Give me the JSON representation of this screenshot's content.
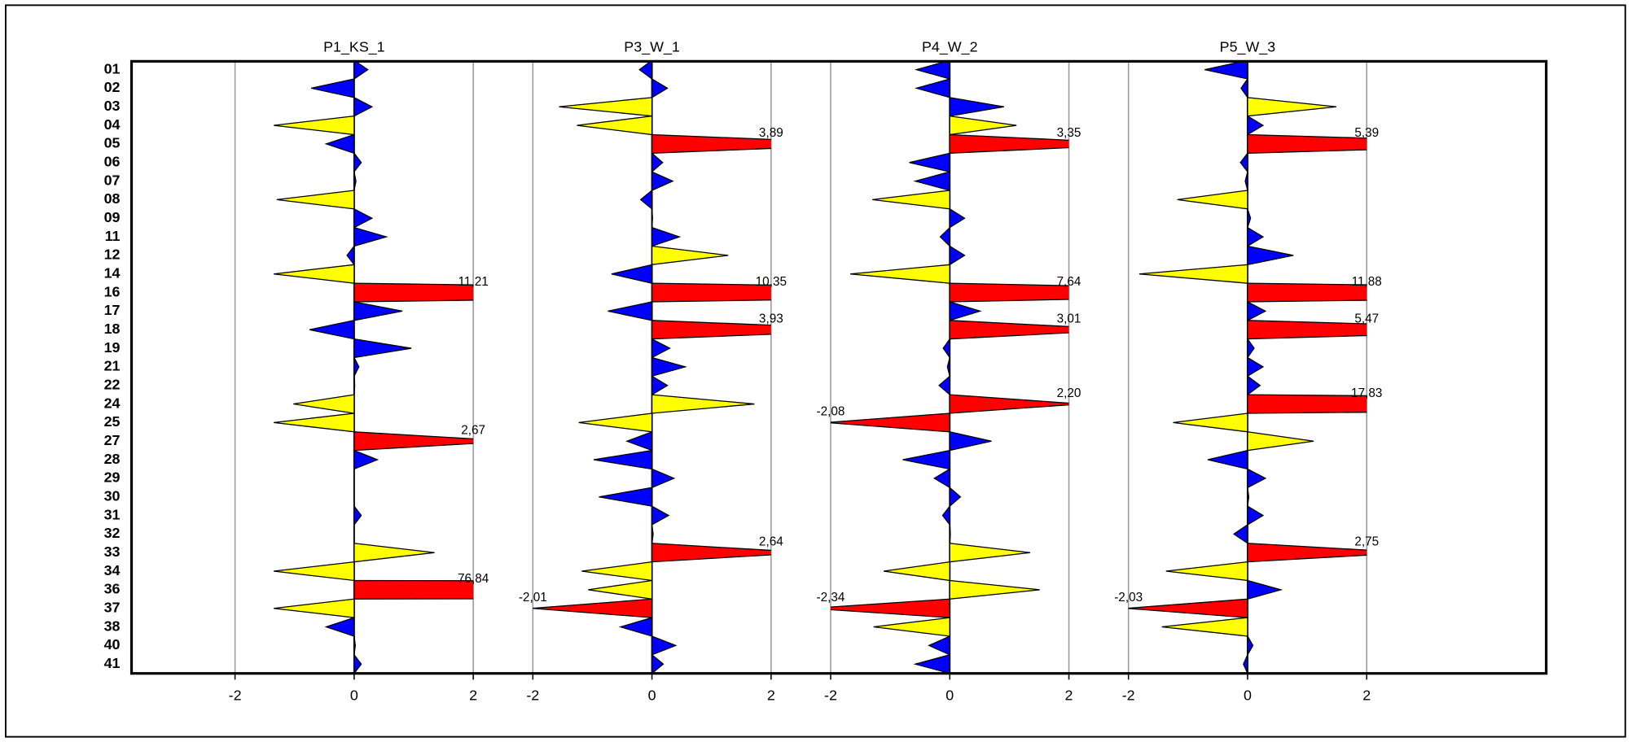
{
  "chart_data": {
    "type": "spike",
    "categories": [
      "01",
      "02",
      "03",
      "04",
      "05",
      "06",
      "07",
      "08",
      "09",
      "11",
      "12",
      "14",
      "16",
      "17",
      "18",
      "19",
      "21",
      "22",
      "24",
      "25",
      "27",
      "28",
      "29",
      "30",
      "31",
      "32",
      "33",
      "34",
      "36",
      "37",
      "38",
      "40",
      "41"
    ],
    "xlim": [
      -2.5,
      2.5
    ],
    "xticks": [
      -2,
      0,
      2
    ],
    "grid": true,
    "series": [
      {
        "name": "P1_KS_1",
        "values": [
          0.23,
          -0.72,
          0.3,
          -1.35,
          -0.47,
          0.12,
          0.03,
          -1.3,
          0.3,
          0.54,
          -0.12,
          -1.35,
          11.21,
          0.81,
          -0.75,
          0.96,
          0.08,
          0.01,
          -1.02,
          -1.35,
          2.67,
          0.39,
          0.0,
          0.0,
          0.12,
          0.0,
          1.35,
          -1.35,
          76.84,
          -1.35,
          -0.47,
          0.02,
          0.12
        ],
        "value_labels": [
          null,
          null,
          null,
          null,
          null,
          null,
          null,
          null,
          null,
          null,
          null,
          null,
          "11,21",
          null,
          null,
          null,
          null,
          null,
          null,
          null,
          "2,67",
          null,
          null,
          null,
          null,
          null,
          null,
          null,
          "76,84",
          null,
          null,
          null,
          null
        ],
        "colors": [
          "#0000ff",
          "#0000ff",
          "#0000ff",
          "#ffff00",
          "#0000ff",
          "#0000ff",
          "#0000ff",
          "#ffff00",
          "#0000ff",
          "#0000ff",
          "#0000ff",
          "#ffff00",
          "#ff0000",
          "#0000ff",
          "#0000ff",
          "#0000ff",
          "#0000ff",
          "#0000ff",
          "#ffff00",
          "#ffff00",
          "#ff0000",
          "#0000ff",
          "#0000ff",
          "#0000ff",
          "#0000ff",
          "#0000ff",
          "#ffff00",
          "#ffff00",
          "#ff0000",
          "#ffff00",
          "#0000ff",
          "#0000ff",
          "#0000ff"
        ]
      },
      {
        "name": "P3_W_1",
        "values": [
          -0.21,
          0.26,
          -1.56,
          -1.26,
          3.89,
          0.18,
          0.35,
          -0.19,
          0.01,
          0.46,
          1.28,
          -0.68,
          10.35,
          -0.74,
          3.93,
          0.3,
          0.56,
          0.26,
          1.72,
          -1.23,
          -0.42,
          -0.98,
          0.37,
          -0.89,
          0.28,
          0.02,
          2.64,
          -1.18,
          -1.07,
          -2.01,
          -0.53,
          0.4,
          0.19
        ],
        "value_labels": [
          null,
          null,
          null,
          null,
          "3,89",
          null,
          null,
          null,
          null,
          null,
          null,
          null,
          "10,35",
          null,
          "3,93",
          null,
          null,
          null,
          null,
          null,
          null,
          null,
          null,
          null,
          null,
          null,
          "2,64",
          null,
          null,
          "-2,01",
          null,
          null,
          null
        ],
        "colors": [
          "#0000ff",
          "#0000ff",
          "#ffff00",
          "#ffff00",
          "#ff0000",
          "#0000ff",
          "#0000ff",
          "#0000ff",
          "#0000ff",
          "#0000ff",
          "#ffff00",
          "#0000ff",
          "#ff0000",
          "#0000ff",
          "#ff0000",
          "#0000ff",
          "#0000ff",
          "#0000ff",
          "#ffff00",
          "#ffff00",
          "#0000ff",
          "#0000ff",
          "#0000ff",
          "#0000ff",
          "#0000ff",
          "#0000ff",
          "#ff0000",
          "#ffff00",
          "#ffff00",
          "#ff0000",
          "#0000ff",
          "#0000ff",
          "#0000ff"
        ]
      },
      {
        "name": "P4_W_2",
        "values": [
          -0.56,
          -0.56,
          0.91,
          1.12,
          3.35,
          -0.68,
          -0.58,
          -1.3,
          0.25,
          -0.16,
          0.25,
          -1.67,
          7.64,
          0.51,
          3.01,
          -0.11,
          -0.04,
          -0.18,
          2.2,
          -2.08,
          0.7,
          -0.79,
          -0.26,
          0.18,
          -0.12,
          0.01,
          1.35,
          -1.11,
          1.51,
          -2.34,
          -1.28,
          -0.35,
          -0.58
        ],
        "value_labels": [
          null,
          null,
          null,
          null,
          "3,35",
          null,
          null,
          null,
          null,
          null,
          null,
          null,
          "7,64",
          null,
          "3,01",
          null,
          null,
          null,
          "2,20",
          "-2,08",
          null,
          null,
          null,
          null,
          null,
          null,
          null,
          null,
          null,
          "-2,34",
          null,
          null,
          null
        ],
        "colors": [
          "#0000ff",
          "#0000ff",
          "#0000ff",
          "#ffff00",
          "#ff0000",
          "#0000ff",
          "#0000ff",
          "#ffff00",
          "#0000ff",
          "#0000ff",
          "#0000ff",
          "#ffff00",
          "#ff0000",
          "#0000ff",
          "#ff0000",
          "#0000ff",
          "#0000ff",
          "#0000ff",
          "#ff0000",
          "#ff0000",
          "#0000ff",
          "#0000ff",
          "#0000ff",
          "#0000ff",
          "#0000ff",
          "#0000ff",
          "#ffff00",
          "#ffff00",
          "#ffff00",
          "#ff0000",
          "#ffff00",
          "#0000ff",
          "#0000ff"
        ]
      },
      {
        "name": "P5_W_3",
        "values": [
          -0.72,
          -0.11,
          1.49,
          0.26,
          5.39,
          -0.12,
          -0.04,
          -1.18,
          0.05,
          0.26,
          0.77,
          -1.82,
          11.88,
          0.3,
          5.47,
          0.11,
          0.26,
          0.21,
          17.83,
          -1.25,
          1.11,
          -0.67,
          0.3,
          0.02,
          0.26,
          -0.23,
          2.75,
          -1.37,
          0.56,
          -2.03,
          -1.44,
          0.09,
          -0.07
        ],
        "value_labels": [
          null,
          null,
          null,
          null,
          "5,39",
          null,
          null,
          null,
          null,
          null,
          null,
          null,
          "11,88",
          null,
          "5,47",
          null,
          null,
          null,
          "17,83",
          null,
          null,
          null,
          null,
          null,
          null,
          null,
          "2,75",
          null,
          null,
          "-2,03",
          null,
          null,
          null
        ],
        "colors": [
          "#0000ff",
          "#0000ff",
          "#ffff00",
          "#0000ff",
          "#ff0000",
          "#0000ff",
          "#0000ff",
          "#ffff00",
          "#0000ff",
          "#0000ff",
          "#0000ff",
          "#ffff00",
          "#ff0000",
          "#0000ff",
          "#ff0000",
          "#0000ff",
          "#0000ff",
          "#0000ff",
          "#ff0000",
          "#ffff00",
          "#ffff00",
          "#0000ff",
          "#0000ff",
          "#0000ff",
          "#0000ff",
          "#0000ff",
          "#ff0000",
          "#ffff00",
          "#0000ff",
          "#ff0000",
          "#ffff00",
          "#0000ff",
          "#0000ff"
        ]
      }
    ]
  }
}
